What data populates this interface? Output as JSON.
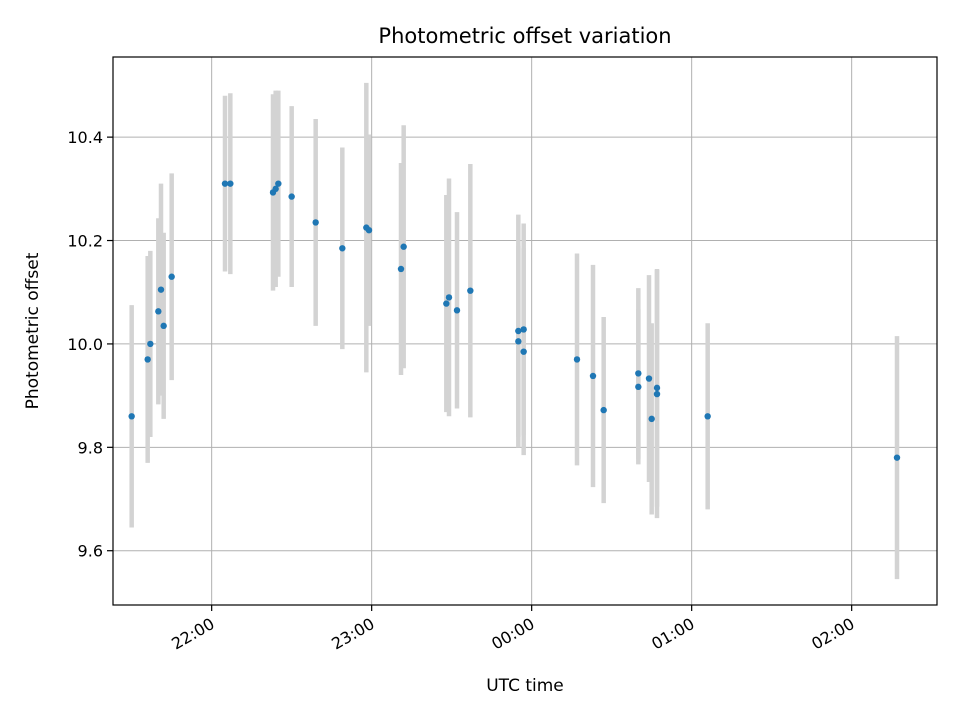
{
  "chart_data": {
    "type": "scatter",
    "title": "Photometric offset variation",
    "xlabel": "UTC time",
    "ylabel": "Photometric offset",
    "x_unit": "UTC time (HH:MM, on a date axis that crosses midnight)",
    "xlim": [
      "21:23",
      "02:32"
    ],
    "ylim": [
      9.495,
      10.555
    ],
    "xticks": [
      "22:00",
      "23:00",
      "00:00",
      "01:00",
      "02:00"
    ],
    "yticks": [
      9.6,
      9.8,
      10.0,
      10.2,
      10.4
    ],
    "yticklabels": [
      "9.6",
      "9.8",
      "10.0",
      "10.2",
      "10.4"
    ],
    "grid": true,
    "colors": {
      "point": "#1f77b4",
      "errorbar": "#d3d3d3",
      "grid": "#b0b0b0"
    },
    "points": [
      {
        "x": "21:30",
        "y": 9.86,
        "yerr": 0.215
      },
      {
        "x": "21:36",
        "y": 9.97,
        "yerr": 0.2
      },
      {
        "x": "21:37",
        "y": 10.0,
        "yerr": 0.18
      },
      {
        "x": "21:40",
        "y": 10.063,
        "yerr": 0.18
      },
      {
        "x": "21:41",
        "y": 10.105,
        "yerr": 0.205
      },
      {
        "x": "21:42",
        "y": 10.035,
        "yerr": 0.18
      },
      {
        "x": "21:45",
        "y": 10.13,
        "yerr": 0.2
      },
      {
        "x": "22:05",
        "y": 10.31,
        "yerr": 0.17
      },
      {
        "x": "22:07",
        "y": 10.31,
        "yerr": 0.175
      },
      {
        "x": "22:23",
        "y": 10.293,
        "yerr": 0.19
      },
      {
        "x": "22:24",
        "y": 10.3,
        "yerr": 0.19
      },
      {
        "x": "22:25",
        "y": 10.31,
        "yerr": 0.18
      },
      {
        "x": "22:30",
        "y": 10.285,
        "yerr": 0.175
      },
      {
        "x": "22:39",
        "y": 10.235,
        "yerr": 0.2
      },
      {
        "x": "22:49",
        "y": 10.185,
        "yerr": 0.195
      },
      {
        "x": "22:58",
        "y": 10.225,
        "yerr": 0.28
      },
      {
        "x": "22:59",
        "y": 10.22,
        "yerr": 0.185
      },
      {
        "x": "23:11",
        "y": 10.145,
        "yerr": 0.205
      },
      {
        "x": "23:12",
        "y": 10.188,
        "yerr": 0.235
      },
      {
        "x": "23:28",
        "y": 10.078,
        "yerr": 0.21
      },
      {
        "x": "23:29",
        "y": 10.09,
        "yerr": 0.23
      },
      {
        "x": "23:32",
        "y": 10.065,
        "yerr": 0.19
      },
      {
        "x": "23:37",
        "y": 10.103,
        "yerr": 0.245
      },
      {
        "x": "23:55",
        "y": 10.005,
        "yerr": 0.185
      },
      {
        "x": "23:55",
        "y": 10.025,
        "yerr": 0.225
      },
      {
        "x": "23:57",
        "y": 10.028,
        "yerr": 0.205
      },
      {
        "x": "23:57",
        "y": 9.985,
        "yerr": 0.2
      },
      {
        "x": "00:17",
        "y": 9.97,
        "yerr": 0.205
      },
      {
        "x": "00:23",
        "y": 9.938,
        "yerr": 0.215
      },
      {
        "x": "00:27",
        "y": 9.872,
        "yerr": 0.18
      },
      {
        "x": "00:40",
        "y": 9.917,
        "yerr": 0.15
      },
      {
        "x": "00:40",
        "y": 9.943,
        "yerr": 0.165
      },
      {
        "x": "00:44",
        "y": 9.933,
        "yerr": 0.2
      },
      {
        "x": "00:45",
        "y": 9.855,
        "yerr": 0.185
      },
      {
        "x": "00:47",
        "y": 9.915,
        "yerr": 0.23
      },
      {
        "x": "00:47",
        "y": 9.903,
        "yerr": 0.24
      },
      {
        "x": "01:06",
        "y": 9.86,
        "yerr": 0.18
      },
      {
        "x": "02:17",
        "y": 9.78,
        "yerr": 0.235
      }
    ]
  }
}
